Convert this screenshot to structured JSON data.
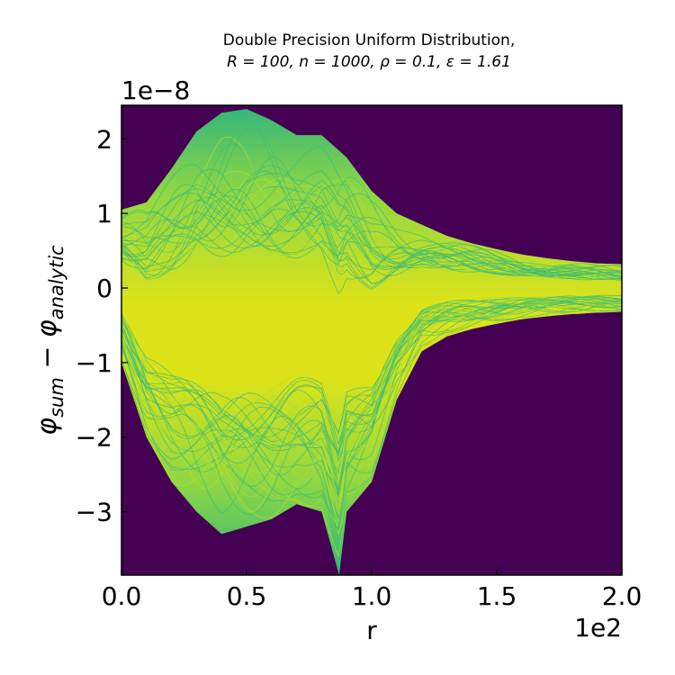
{
  "chart_data": {
    "type": "heatmap",
    "title_line1": "Double Precision Uniform Distribution,",
    "title_line2": "R = 100, n = 1000, ρ = 0.1, ε = 1.61",
    "xlabel": "r",
    "ylabel": "φsum − φanalytic",
    "ylabel_main": "φ",
    "ylabel_sub1": "sum",
    "ylabel_minus": " − φ",
    "ylabel_sub2": "analytic",
    "x_offset_label": "1e2",
    "y_offset_label": "1e−8",
    "xlim": [
      0,
      2
    ],
    "ylim": [
      -3.85,
      2.45
    ],
    "xticks": [
      0.0,
      0.5,
      1.0,
      1.5,
      2.0
    ],
    "xtick_labels": [
      "0.0",
      "0.5",
      "1.0",
      "1.5",
      "2.0"
    ],
    "yticks": [
      -3,
      -2,
      -1,
      0,
      1,
      2
    ],
    "ytick_labels": [
      "−3",
      "−2",
      "−1",
      "0",
      "1",
      "2"
    ],
    "colormap": "viridis",
    "background_color": "#440154",
    "envelope_upper": [
      [
        0.0,
        1.05
      ],
      [
        0.1,
        1.15
      ],
      [
        0.2,
        1.6
      ],
      [
        0.3,
        2.1
      ],
      [
        0.4,
        2.35
      ],
      [
        0.5,
        2.4
      ],
      [
        0.6,
        2.25
      ],
      [
        0.7,
        2.05
      ],
      [
        0.8,
        2.05
      ],
      [
        0.9,
        1.75
      ],
      [
        1.0,
        1.3
      ],
      [
        1.1,
        1.0
      ],
      [
        1.2,
        0.85
      ],
      [
        1.3,
        0.7
      ],
      [
        1.4,
        0.6
      ],
      [
        1.5,
        0.52
      ],
      [
        1.6,
        0.45
      ],
      [
        1.7,
        0.4
      ],
      [
        1.8,
        0.36
      ],
      [
        1.9,
        0.33
      ],
      [
        2.0,
        0.32
      ]
    ],
    "envelope_lower": [
      [
        0.0,
        -1.0
      ],
      [
        0.1,
        -2.0
      ],
      [
        0.2,
        -2.6
      ],
      [
        0.3,
        -3.0
      ],
      [
        0.4,
        -3.3
      ],
      [
        0.5,
        -3.2
      ],
      [
        0.6,
        -3.1
      ],
      [
        0.7,
        -2.9
      ],
      [
        0.8,
        -3.0
      ],
      [
        0.87,
        -3.85
      ],
      [
        0.9,
        -3.0
      ],
      [
        1.0,
        -2.6
      ],
      [
        1.1,
        -1.5
      ],
      [
        1.2,
        -0.85
      ],
      [
        1.3,
        -0.65
      ],
      [
        1.4,
        -0.55
      ],
      [
        1.5,
        -0.48
      ],
      [
        1.6,
        -0.42
      ],
      [
        1.7,
        -0.38
      ],
      [
        1.8,
        -0.35
      ],
      [
        1.9,
        -0.33
      ],
      [
        2.0,
        -0.32
      ]
    ]
  }
}
